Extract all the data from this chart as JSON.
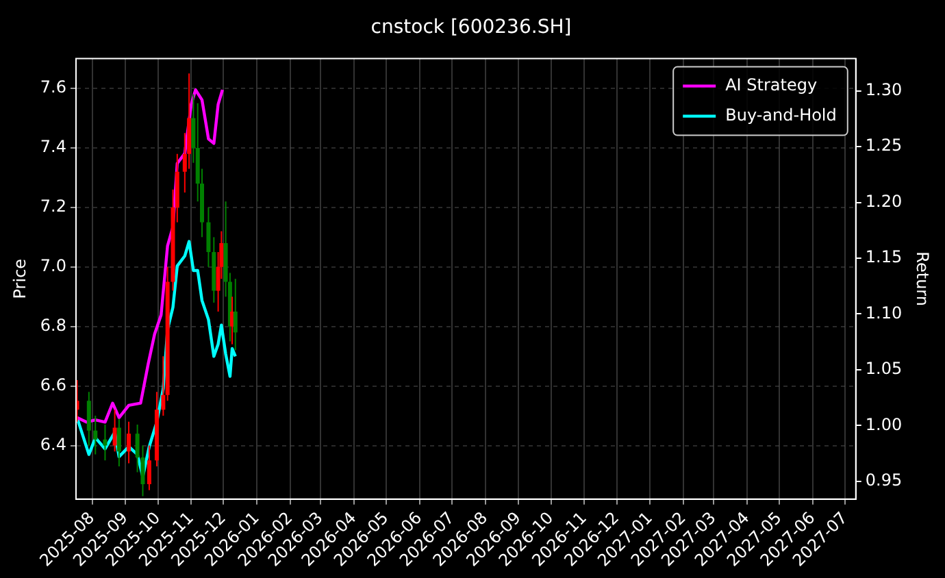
{
  "chart_data": {
    "type": "candlestick",
    "title": "cnstock [600236.SH]",
    "ylabel": "Price",
    "y2label": "Return",
    "xlim": [
      "2025-07-17",
      "2027-07-11"
    ],
    "xticks": [
      "2025-08",
      "2025-09",
      "2025-10",
      "2025-11",
      "2025-12",
      "2026-01",
      "2026-02",
      "2026-03",
      "2026-04",
      "2026-05",
      "2026-06",
      "2026-07",
      "2026-08",
      "2026-09",
      "2026-10",
      "2026-11",
      "2026-12",
      "2027-01",
      "2027-02",
      "2027-03",
      "2027-04",
      "2027-05",
      "2027-06",
      "2027-07"
    ],
    "ylim": [
      6.22,
      7.7
    ],
    "yticks": [
      6.4,
      6.6,
      6.8,
      {
        "value": 7,
        "label": "7.0"
      },
      7.2,
      7.4,
      7.6
    ],
    "y2lim": [
      0.934,
      1.329
    ],
    "y2ticks": [
      {
        "value": 0.95,
        "label": "0.95"
      },
      {
        "value": 1,
        "label": "1.00"
      },
      {
        "value": 1.05,
        "label": "1.05"
      },
      {
        "value": 1.1,
        "label": "1.10"
      },
      {
        "value": 1.15,
        "label": "1.15"
      },
      {
        "value": 1.2,
        "label": "1.20"
      },
      {
        "value": 1.25,
        "label": "1.25"
      },
      {
        "value": 1.3,
        "label": "1.30"
      }
    ],
    "grid": true,
    "legend": "top right",
    "series": [
      {
        "x": [
          "2025-07-18",
          "2025-07-29",
          "2025-08-04",
          "2025-08-13",
          "2025-08-22",
          "2025-08-26",
          "2025-09-04",
          "2025-09-12",
          "2025-09-17",
          "2025-09-23",
          "2025-09-30",
          "2025-10-06",
          "2025-10-10",
          "2025-10-15",
          "2025-10-19",
          "2025-10-26",
          "2025-10-30",
          "2025-11-03",
          "2025-11-07",
          "2025-11-11",
          "2025-11-17",
          "2025-11-22",
          "2025-11-26",
          "2025-11-29",
          "2025-12-03",
          "2025-12-07",
          "2025-12-09",
          "2025-12-12"
        ],
        "ohlc": [
          [
            6.52,
            6.62,
            6.48,
            6.55
          ],
          [
            6.55,
            6.58,
            6.4,
            6.45
          ],
          [
            6.45,
            6.5,
            6.37,
            6.42
          ],
          [
            6.42,
            6.47,
            6.35,
            6.4
          ],
          [
            6.4,
            6.52,
            6.38,
            6.46
          ],
          [
            6.46,
            6.49,
            6.33,
            6.38
          ],
          [
            6.38,
            6.48,
            6.34,
            6.44
          ],
          [
            6.44,
            6.47,
            6.31,
            6.36
          ],
          [
            6.36,
            6.4,
            6.23,
            6.27
          ],
          [
            6.27,
            6.4,
            6.25,
            6.35
          ],
          [
            6.35,
            6.58,
            6.33,
            6.52
          ],
          [
            6.52,
            6.7,
            6.5,
            6.57
          ],
          [
            6.57,
            7.0,
            6.55,
            6.95
          ],
          [
            6.95,
            7.26,
            6.92,
            7.2
          ],
          [
            7.2,
            7.38,
            7.15,
            7.32
          ],
          [
            7.32,
            7.45,
            7.25,
            7.38
          ],
          [
            7.38,
            7.65,
            7.33,
            7.5
          ],
          [
            7.5,
            7.58,
            7.35,
            7.4
          ],
          [
            7.4,
            7.55,
            7.22,
            7.28
          ],
          [
            7.28,
            7.33,
            7.1,
            7.15
          ],
          [
            7.15,
            7.2,
            7.0,
            7.05
          ],
          [
            7.05,
            7.1,
            6.88,
            6.92
          ],
          [
            6.92,
            7.05,
            6.85,
            7.0
          ],
          [
            7.0,
            7.12,
            6.96,
            7.08
          ],
          [
            7.08,
            7.22,
            6.9,
            6.95
          ],
          [
            6.95,
            6.98,
            6.75,
            6.8
          ],
          [
            6.8,
            6.9,
            6.74,
            6.85
          ],
          [
            6.85,
            6.96,
            6.72,
            6.78
          ]
        ],
        "colors": [
          "#ff0000",
          "#008000",
          "#008000",
          "#008000",
          "#ff0000",
          "#008000",
          "#ff0000",
          "#008000",
          "#008000",
          "#ff0000",
          "#ff0000",
          "#ff0000",
          "#ff0000",
          "#ff0000",
          "#ff0000",
          "#ff0000",
          "#ff0000",
          "#008000",
          "#008000",
          "#008000",
          "#008000",
          "#008000",
          "#ff0000",
          "#ff0000",
          "#008000",
          "#008000",
          "#ff0000",
          "#008000"
        ]
      },
      {
        "type": "line",
        "name": "AI Strategy",
        "color": "#ff00ff",
        "axis": "y2",
        "x": [
          "2025-07-18",
          "2025-07-27",
          "2025-08-04",
          "2025-08-13",
          "2025-08-20",
          "2025-08-26",
          "2025-09-04",
          "2025-09-15",
          "2025-09-22",
          "2025-09-28",
          "2025-10-04",
          "2025-10-10",
          "2025-10-15",
          "2025-10-19",
          "2025-10-26",
          "2025-11-01",
          "2025-11-05",
          "2025-11-11",
          "2025-11-17",
          "2025-11-22",
          "2025-11-26",
          "2025-11-30"
        ],
        "values": [
          1.007,
          1.003,
          1.005,
          1.003,
          1.02,
          1.007,
          1.018,
          1.02,
          1.055,
          1.082,
          1.099,
          1.161,
          1.178,
          1.235,
          1.244,
          1.288,
          1.301,
          1.292,
          1.257,
          1.253,
          1.288,
          1.301
        ]
      },
      {
        "type": "line",
        "name": "Buy-and-Hold",
        "color": "#00ffff",
        "axis": "y2",
        "x": [
          "2025-07-18",
          "2025-07-29",
          "2025-08-04",
          "2025-08-13",
          "2025-08-22",
          "2025-08-26",
          "2025-09-04",
          "2025-09-12",
          "2025-09-17",
          "2025-09-23",
          "2025-09-30",
          "2025-10-06",
          "2025-10-10",
          "2025-10-15",
          "2025-10-19",
          "2025-10-26",
          "2025-10-30",
          "2025-11-03",
          "2025-11-07",
          "2025-11-11",
          "2025-11-17",
          "2025-11-22",
          "2025-11-26",
          "2025-11-29",
          "2025-12-03",
          "2025-12-07",
          "2025-12-09",
          "2025-12-12"
        ],
        "values": [
          1.007,
          0.974,
          0.989,
          0.979,
          0.994,
          0.972,
          0.981,
          0.974,
          0.954,
          0.981,
          1.003,
          1.033,
          1.086,
          1.106,
          1.143,
          1.152,
          1.165,
          1.139,
          1.139,
          1.112,
          1.095,
          1.062,
          1.073,
          1.09,
          1.064,
          1.044,
          1.069,
          1.062
        ]
      }
    ]
  }
}
